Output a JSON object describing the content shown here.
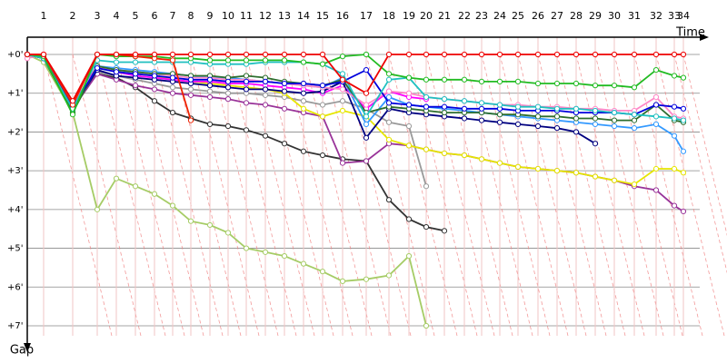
{
  "chart_data": {
    "type": "line",
    "x_label": "Time",
    "y_label": "Gap",
    "invert_y": true,
    "grid": true,
    "xlim": [
      0,
      745
    ],
    "ylim": [
      0,
      7
    ],
    "xticks": [
      {
        "value": 18,
        "label": "1"
      },
      {
        "value": 50,
        "label": "2"
      },
      {
        "value": 77,
        "label": "3"
      },
      {
        "value": 98,
        "label": "4"
      },
      {
        "value": 119,
        "label": "5"
      },
      {
        "value": 140,
        "label": "6"
      },
      {
        "value": 160,
        "label": "7"
      },
      {
        "value": 180,
        "label": "8"
      },
      {
        "value": 201,
        "label": "9"
      },
      {
        "value": 221,
        "label": "10"
      },
      {
        "value": 241,
        "label": "11"
      },
      {
        "value": 262,
        "label": "12"
      },
      {
        "value": 283,
        "label": "13"
      },
      {
        "value": 304,
        "label": "14"
      },
      {
        "value": 325,
        "label": "15"
      },
      {
        "value": 347,
        "label": "16"
      },
      {
        "value": 373,
        "label": "17"
      },
      {
        "value": 398,
        "label": "18"
      },
      {
        "value": 420,
        "label": "19"
      },
      {
        "value": 439,
        "label": "20"
      },
      {
        "value": 459,
        "label": "21"
      },
      {
        "value": 481,
        "label": "22"
      },
      {
        "value": 500,
        "label": "23"
      },
      {
        "value": 520,
        "label": "24"
      },
      {
        "value": 540,
        "label": "25"
      },
      {
        "value": 562,
        "label": "26"
      },
      {
        "value": 583,
        "label": "27"
      },
      {
        "value": 604,
        "label": "28"
      },
      {
        "value": 625,
        "label": "29"
      },
      {
        "value": 646,
        "label": "30"
      },
      {
        "value": 668,
        "label": "31"
      },
      {
        "value": 692,
        "label": "32"
      },
      {
        "value": 712,
        "label": "33"
      },
      {
        "value": 722,
        "label": "34"
      }
    ],
    "yticks": [
      {
        "value": 0,
        "label": "+0'"
      },
      {
        "value": 1,
        "label": "+1'"
      },
      {
        "value": 2,
        "label": "+2'"
      },
      {
        "value": 3,
        "label": "+3'"
      },
      {
        "value": 4,
        "label": "+4'"
      },
      {
        "value": 5,
        "label": "+5'"
      },
      {
        "value": 6,
        "label": "+6'"
      },
      {
        "value": 7,
        "label": "+7'"
      }
    ],
    "x": [
      0,
      18,
      50,
      77,
      98,
      119,
      140,
      160,
      180,
      201,
      221,
      241,
      262,
      283,
      304,
      325,
      347,
      373,
      398,
      420,
      439,
      459,
      481,
      500,
      520,
      540,
      562,
      583,
      604,
      625,
      646,
      668,
      692,
      712,
      722
    ],
    "series": [
      {
        "color": "#a6cc66",
        "values": [
          0,
          0.2,
          1.5,
          4.0,
          3.2,
          3.4,
          3.6,
          3.9,
          4.3,
          4.4,
          4.6,
          5.0,
          5.1,
          5.2,
          5.4,
          5.6,
          5.85,
          5.8,
          5.7,
          5.2,
          7.0,
          null,
          null,
          null,
          null,
          null,
          null,
          null,
          null,
          null,
          null,
          null,
          null,
          null,
          null
        ]
      },
      {
        "color": "#333333",
        "values": [
          0,
          0.1,
          1.3,
          0.5,
          0.6,
          0.85,
          1.2,
          1.5,
          1.65,
          1.8,
          1.85,
          1.95,
          2.1,
          2.3,
          2.5,
          2.6,
          2.7,
          2.75,
          3.75,
          4.25,
          4.45,
          4.55,
          null,
          null,
          null,
          null,
          null,
          null,
          null,
          null,
          null,
          null,
          null,
          null,
          null
        ]
      },
      {
        "color": "#999999",
        "values": [
          0,
          0.1,
          1.4,
          0.45,
          0.55,
          0.65,
          0.75,
          0.85,
          0.9,
          0.95,
          1.0,
          1.0,
          1.05,
          1.1,
          1.2,
          1.3,
          1.2,
          1.4,
          1.75,
          1.85,
          3.4,
          null,
          null,
          null,
          null,
          null,
          null,
          null,
          null,
          null,
          null,
          null,
          null,
          null,
          null
        ]
      },
      {
        "color": "#993399",
        "values": [
          0,
          0.1,
          1.4,
          0.5,
          0.65,
          0.8,
          0.9,
          1.0,
          1.05,
          1.1,
          1.15,
          1.25,
          1.3,
          1.4,
          1.5,
          1.6,
          2.8,
          2.75,
          2.3,
          2.35,
          2.45,
          2.55,
          2.6,
          2.7,
          2.8,
          2.9,
          2.95,
          3.0,
          3.05,
          3.15,
          3.25,
          3.4,
          3.5,
          3.9,
          4.05
        ]
      },
      {
        "color": "#e6e600",
        "values": [
          0,
          0.1,
          1.35,
          0.3,
          0.45,
          0.5,
          0.55,
          0.65,
          0.7,
          0.75,
          0.8,
          0.85,
          0.9,
          1.0,
          1.4,
          1.6,
          1.45,
          1.6,
          2.2,
          2.35,
          2.45,
          2.55,
          2.6,
          2.7,
          2.8,
          2.9,
          2.95,
          3.0,
          3.05,
          3.15,
          3.25,
          3.35,
          2.95,
          2.95,
          3.05
        ]
      },
      {
        "color": "#ff00ff",
        "values": [
          0,
          0.1,
          1.3,
          0.3,
          0.45,
          0.55,
          0.6,
          0.65,
          0.7,
          0.7,
          0.75,
          0.75,
          0.8,
          0.85,
          0.9,
          1.0,
          0.8,
          1.4,
          0.95,
          1.1,
          1.15,
          null,
          null,
          null,
          null,
          null,
          null,
          null,
          null,
          null,
          null,
          null,
          null,
          null,
          null
        ]
      },
      {
        "color": "#000080",
        "values": [
          0,
          0.1,
          1.4,
          0.4,
          0.55,
          0.6,
          0.65,
          0.7,
          0.75,
          0.8,
          0.85,
          0.9,
          0.9,
          0.95,
          1.0,
          0.95,
          0.7,
          2.15,
          1.4,
          1.5,
          1.55,
          1.6,
          1.65,
          1.7,
          1.75,
          1.8,
          1.85,
          1.9,
          2.0,
          2.3,
          null,
          null,
          null,
          null,
          null
        ]
      },
      {
        "color": "#3399ff",
        "values": [
          0,
          0.1,
          1.45,
          0.3,
          0.35,
          0.4,
          0.45,
          0.5,
          0.55,
          0.6,
          0.6,
          0.65,
          0.7,
          0.75,
          0.8,
          0.85,
          0.6,
          1.8,
          1.1,
          1.3,
          1.35,
          1.4,
          1.45,
          1.5,
          1.55,
          1.6,
          1.65,
          1.7,
          1.75,
          1.8,
          1.85,
          1.9,
          1.8,
          2.1,
          2.5
        ]
      },
      {
        "color": "#ff88c8",
        "values": [
          0.1,
          0,
          1.3,
          0.35,
          0.4,
          0.45,
          0.5,
          0.55,
          0.6,
          0.6,
          0.65,
          0.65,
          0.7,
          0.75,
          0.8,
          0.85,
          0.9,
          1.3,
          0.95,
          1.0,
          1.1,
          1.15,
          1.2,
          1.25,
          1.3,
          1.3,
          1.35,
          1.35,
          1.4,
          1.4,
          1.45,
          1.45,
          1.1,
          1.6,
          1.65
        ]
      },
      {
        "color": "#2e6e2e",
        "values": [
          0,
          0.1,
          1.5,
          0.3,
          0.4,
          0.45,
          0.5,
          0.5,
          0.55,
          0.55,
          0.6,
          0.55,
          0.6,
          0.7,
          0.75,
          0.8,
          0.65,
          1.5,
          1.35,
          1.4,
          1.45,
          1.5,
          1.5,
          1.5,
          1.55,
          1.55,
          1.6,
          1.6,
          1.65,
          1.65,
          1.7,
          1.7,
          1.3,
          1.7,
          1.75
        ]
      },
      {
        "color": "#0000dd",
        "values": [
          0,
          0.1,
          1.35,
          0.35,
          0.45,
          0.5,
          0.55,
          0.6,
          0.65,
          0.65,
          0.7,
          0.7,
          0.7,
          0.75,
          0.75,
          0.8,
          0.7,
          0.4,
          1.25,
          1.3,
          1.35,
          1.35,
          1.4,
          1.4,
          1.4,
          1.45,
          1.45,
          1.45,
          1.5,
          1.5,
          1.5,
          1.55,
          1.3,
          1.35,
          1.4
        ]
      },
      {
        "color": "#20c0c0",
        "values": [
          0,
          0.1,
          1.4,
          0.15,
          0.2,
          0.2,
          0.2,
          0.2,
          0.2,
          0.25,
          0.25,
          0.25,
          0.2,
          0.2,
          0.2,
          0.25,
          0.5,
          1.6,
          0.65,
          0.6,
          1.1,
          1.15,
          1.2,
          1.25,
          1.3,
          1.35,
          1.35,
          1.4,
          1.4,
          1.45,
          1.5,
          1.55,
          1.6,
          1.65,
          1.7
        ]
      },
      {
        "color": "#22bb22",
        "values": [
          0,
          0.05,
          1.55,
          0,
          0.05,
          0.05,
          0.05,
          0.1,
          0.1,
          0.15,
          0.15,
          0.15,
          0.15,
          0.15,
          0.2,
          0.25,
          0.05,
          0,
          0.5,
          0.6,
          0.65,
          0.65,
          0.65,
          0.7,
          0.7,
          0.7,
          0.75,
          0.75,
          0.75,
          0.8,
          0.8,
          0.85,
          0.4,
          0.55,
          0.6
        ]
      },
      {
        "color": "#ee2200",
        "values": [
          0,
          0,
          1.3,
          0,
          0,
          0.05,
          0.1,
          0.15,
          1.7,
          null,
          null,
          null,
          null,
          null,
          null,
          null,
          null,
          null,
          null,
          null,
          null,
          null,
          null,
          null,
          null,
          null,
          null,
          null,
          null,
          null,
          null,
          null,
          null,
          null,
          null
        ]
      },
      {
        "color": "#ee0000",
        "values": [
          0,
          0,
          1.2,
          0,
          0,
          0,
          0,
          0,
          0,
          0,
          0,
          0,
          0,
          0,
          0,
          0,
          0.65,
          1.0,
          0,
          0,
          0,
          0,
          0,
          0,
          0,
          0,
          0,
          0,
          0,
          0,
          0,
          0,
          0,
          0,
          0
        ]
      }
    ]
  }
}
